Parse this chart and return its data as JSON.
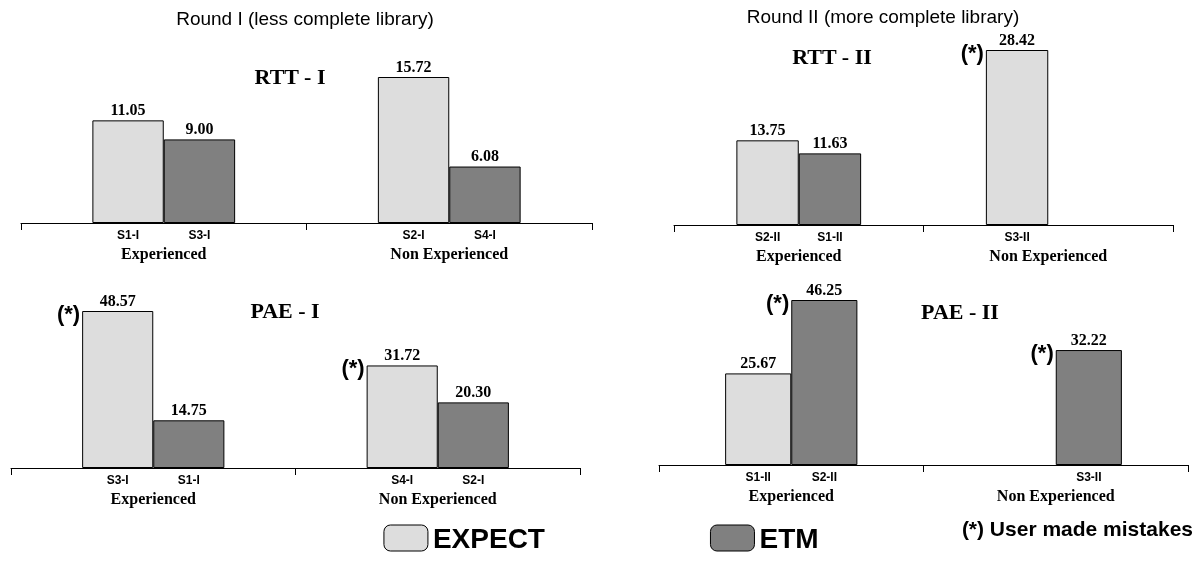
{
  "chart_data": [
    {
      "type": "bar",
      "title": "RTT - I",
      "subtitle": "Round I (less complete library)",
      "stacked": true,
      "categories": [
        null,
        "S1-I",
        "S3-I",
        null,
        null,
        "S2-I",
        "S4-I",
        null
      ],
      "series": [
        {
          "color": "#dddddd",
          "values": [
            null,
            11.05,
            null,
            null,
            null,
            15.72,
            null,
            null
          ],
          "value_labels": [
            null,
            "11.05",
            null,
            null,
            null,
            "15.72",
            null,
            null
          ]
        },
        {
          "color": "#808080",
          "values": [
            null,
            null,
            9.0,
            null,
            null,
            null,
            6.08,
            null
          ],
          "value_labels": [
            null,
            null,
            "9.00",
            null,
            null,
            null,
            "6.08",
            null
          ]
        }
      ],
      "annotations": [
        "Experienced",
        "Non Experienced"
      ]
    },
    {
      "type": "bar",
      "title": "RTT - II",
      "subtitle": "Round II (more complete library)",
      "stacked": true,
      "categories": [
        null,
        "S2-II",
        "S1-II",
        null,
        null,
        "S3-II",
        null,
        null
      ],
      "series": [
        {
          "color": "#dddddd",
          "values": [
            null,
            13.75,
            null,
            null,
            null,
            28.42,
            null,
            null
          ],
          "value_labels": [
            null,
            "13.75",
            null,
            null,
            null,
            "28.42",
            null,
            null
          ]
        },
        {
          "color": "#808080",
          "values": [
            null,
            null,
            11.63,
            null,
            null,
            null,
            null,
            null
          ],
          "value_labels": [
            null,
            null,
            "11.63",
            null,
            null,
            null,
            null,
            null
          ]
        }
      ],
      "annotations": [
        "Experienced",
        "Non Experienced",
        {
          "text": "(*)",
          "x": "S3-II",
          "y": 28.42
        }
      ]
    },
    {
      "type": "bar",
      "title": "PAE - I",
      "stacked": true,
      "legend": "bottom",
      "categories": [
        null,
        "S3-I",
        "S1-I",
        null,
        null,
        "S4-I",
        "S2-I",
        null
      ],
      "series": [
        {
          "name": "EXPECT",
          "color": "#dddddd",
          "values": [
            null,
            48.57,
            null,
            null,
            null,
            31.72,
            null,
            null
          ],
          "value_labels": [
            null,
            "48.57",
            null,
            null,
            null,
            "31.72",
            null,
            null
          ]
        },
        {
          "name": "ETM",
          "color": "#808080",
          "values": [
            null,
            null,
            14.75,
            null,
            null,
            null,
            20.3,
            null
          ],
          "value_labels": [
            null,
            null,
            "14.75",
            null,
            null,
            null,
            "20.30",
            null
          ]
        }
      ],
      "annotations": [
        "Experienced",
        "Non Experienced",
        {
          "text": "(*)",
          "x": "S3-I",
          "y": 48.57
        },
        {
          "text": "(*)",
          "x": "S4-I",
          "y": 31.72
        }
      ]
    },
    {
      "type": "bar",
      "title": "PAE - II",
      "stacked": true,
      "categories": [
        null,
        "S1-II",
        "S2-II",
        null,
        null,
        null,
        "S3-II",
        null
      ],
      "series": [
        {
          "color": "#dddddd",
          "values": [
            null,
            25.67,
            null,
            null,
            null,
            null,
            null,
            null
          ],
          "value_labels": [
            null,
            "25.67",
            null,
            null,
            null,
            null,
            null,
            null
          ]
        },
        {
          "color": "#808080",
          "values": [
            null,
            null,
            46.25,
            null,
            null,
            null,
            32.22,
            null
          ],
          "value_labels": [
            null,
            null,
            "46.25",
            null,
            null,
            null,
            "32.22",
            null
          ]
        }
      ],
      "annotations": [
        "Experienced",
        "Non Experienced",
        {
          "text": "(*)",
          "x": "S2-II",
          "y": 46.25
        },
        {
          "text": "(*)",
          "x": "S3-II",
          "y": 32.22
        },
        "(*) User made mistakes"
      ]
    }
  ]
}
